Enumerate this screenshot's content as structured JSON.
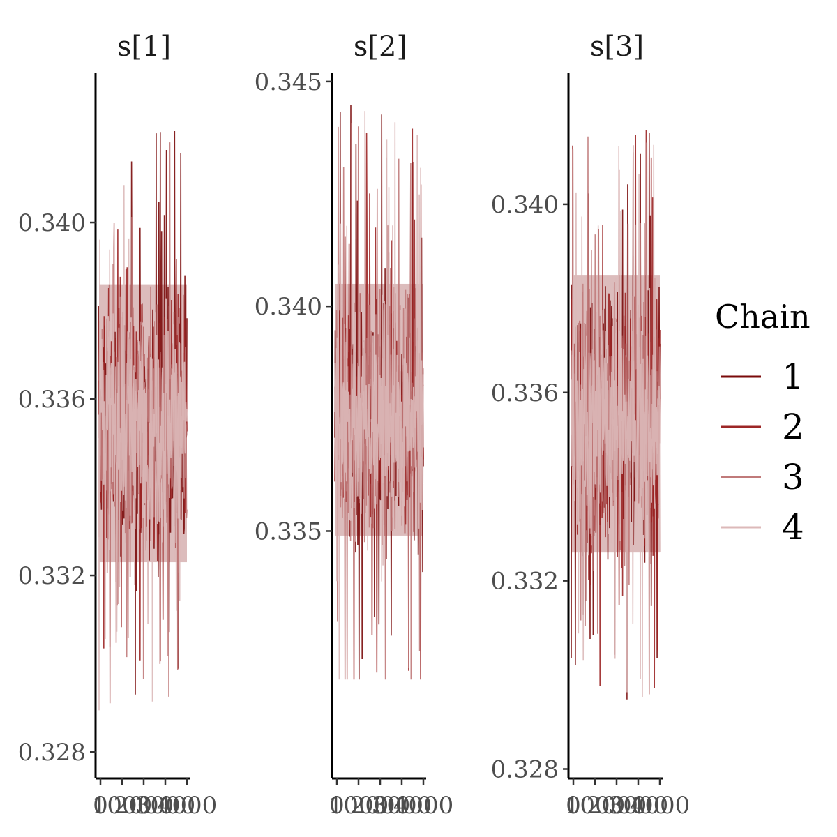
{
  "chart_data": {
    "type": "line",
    "description_free": true,
    "legend": {
      "title": "Chain",
      "placement": "right",
      "entries": [
        {
          "label": "1",
          "color": "#7a0a0a"
        },
        {
          "label": "2",
          "color": "#9c2626"
        },
        {
          "label": "3",
          "color": "#c07a7a"
        },
        {
          "label": "4",
          "color": "#dcb9b9"
        }
      ]
    },
    "xticks": [
      "0",
      "1000",
      "2000",
      "3000",
      "4000"
    ],
    "xlim": [
      0,
      4000
    ],
    "panels": [
      {
        "title": "s[1]",
        "ylim": [
          0.3274,
          0.3434
        ],
        "yticks": [
          {
            "value": 0.34,
            "label": "0.340"
          },
          {
            "value": 0.336,
            "label": "0.336"
          },
          {
            "value": 0.332,
            "label": "0.332"
          },
          {
            "value": 0.328,
            "label": "0.328"
          }
        ],
        "center": 0.3355,
        "band": [
          0.3323,
          0.3386
        ],
        "extremes": [
          0.3278,
          0.3421
        ]
      },
      {
        "title": "s[2]",
        "ylim": [
          0.3295,
          0.3452
        ],
        "yticks": [
          {
            "value": 0.345,
            "label": "0.345"
          },
          {
            "value": 0.34,
            "label": "0.340"
          },
          {
            "value": 0.335,
            "label": "0.335"
          }
        ],
        "center": 0.3375,
        "band": [
          0.3349,
          0.3405
        ],
        "extremes": [
          0.3317,
          0.3445
        ]
      },
      {
        "title": "s[3]",
        "ylim": [
          0.3278,
          0.3428
        ],
        "yticks": [
          {
            "value": 0.34,
            "label": "0.340"
          },
          {
            "value": 0.336,
            "label": "0.336"
          },
          {
            "value": 0.332,
            "label": "0.332"
          },
          {
            "value": 0.328,
            "label": "0.328"
          }
        ],
        "center": 0.3355,
        "band": [
          0.3326,
          0.3385
        ],
        "extremes": [
          0.3284,
          0.3416
        ]
      }
    ]
  }
}
